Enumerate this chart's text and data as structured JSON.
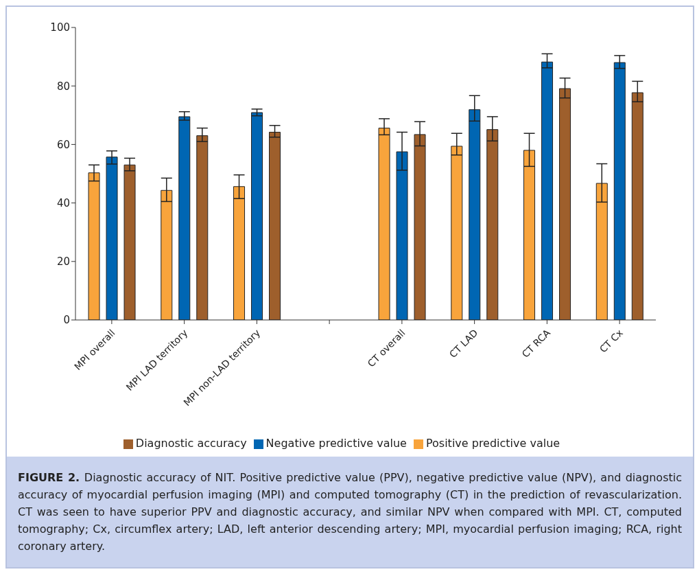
{
  "chart_data": {
    "type": "bar",
    "categories": [
      "MPI overall",
      "MPI LAD territory",
      "MPI non-LAD territory",
      null,
      "CT overall",
      "CT LAD",
      "CT RCA",
      "CT Cx"
    ],
    "series": [
      {
        "name": "Positive predictive value",
        "color": "#f8a43c",
        "values": [
          50.3,
          44.3,
          45.6,
          null,
          65.6,
          59.4,
          58,
          46.7
        ],
        "errors": [
          [
            47.5,
            53
          ],
          [
            40.5,
            48.5
          ],
          [
            41.5,
            49.6
          ],
          null,
          [
            63.3,
            68.8
          ],
          [
            56.4,
            63.8
          ],
          [
            52.5,
            63.8
          ],
          [
            40.3,
            53.4
          ]
        ]
      },
      {
        "name": "Negative predictive value",
        "color": "#0066b3",
        "values": [
          55.7,
          69.5,
          70.9,
          null,
          57.5,
          71.9,
          88.2,
          88
        ],
        "errors": [
          [
            53.3,
            57.8
          ],
          [
            68.3,
            71.2
          ],
          [
            69.8,
            72.1
          ],
          null,
          [
            51.2,
            64.2
          ],
          [
            68,
            76.7
          ],
          [
            86.2,
            91
          ],
          [
            86,
            90.4
          ]
        ]
      },
      {
        "name": "Diagnostic accuracy",
        "color": "#9e5f2c",
        "values": [
          53,
          63,
          64.2,
          null,
          63.4,
          65.1,
          79.1,
          77.7
        ],
        "errors": [
          [
            51,
            55.3
          ],
          [
            61,
            65.6
          ],
          [
            62.5,
            66.5
          ],
          null,
          [
            59.5,
            67.8
          ],
          [
            61.2,
            69.5
          ],
          [
            75.9,
            82.7
          ],
          [
            74.6,
            81.6
          ]
        ]
      }
    ],
    "ylim": [
      0,
      100
    ],
    "yticks": [
      0,
      20,
      40,
      60,
      80,
      100
    ],
    "grid": false,
    "legend": "bottom",
    "annotations": [
      "FIGURE 2.",
      "Diagnostic accuracy of NIT. Positive predictive value (PPV), negative predictive value (NPV), and diagnostic accuracy of myocardial perfusion imaging (MPI) and computed tomography (CT) in the prediction of revascularization. CT was seen to have superior PPV and diagnostic accuracy, and similar NPV when compared with MPI. CT, computed tomography; Cx, circumflex artery; LAD, left anterior descending artery; MPI, myocardial perfusion imaging; RCA, right coronary artery."
    ]
  }
}
